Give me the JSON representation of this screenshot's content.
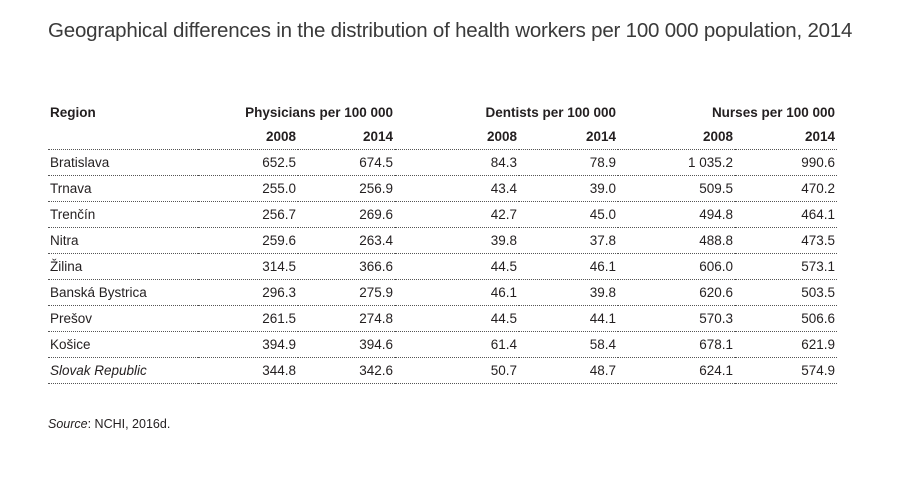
{
  "title": "Geographical differences in the distribution of health workers per 100 000 population, 2014",
  "table": {
    "region_header": "Region",
    "groups": [
      {
        "label": "Physicians per 100 000",
        "years": [
          "2008",
          "2014"
        ]
      },
      {
        "label": "Dentists per 100 000",
        "years": [
          "2008",
          "2014"
        ]
      },
      {
        "label": "Nurses per 100 000",
        "years": [
          "2008",
          "2014"
        ]
      }
    ],
    "rows": [
      {
        "region": "Bratislava",
        "values": [
          "652.5",
          "674.5",
          "84.3",
          "78.9",
          "1 035.2",
          "990.6"
        ]
      },
      {
        "region": "Trnava",
        "values": [
          "255.0",
          "256.9",
          "43.4",
          "39.0",
          "509.5",
          "470.2"
        ]
      },
      {
        "region": "Trenčín",
        "values": [
          "256.7",
          "269.6",
          "42.7",
          "45.0",
          "494.8",
          "464.1"
        ]
      },
      {
        "region": "Nitra",
        "values": [
          "259.6",
          "263.4",
          "39.8",
          "37.8",
          "488.8",
          "473.5"
        ]
      },
      {
        "region": "Žilina",
        "values": [
          "314.5",
          "366.6",
          "44.5",
          "46.1",
          "606.0",
          "573.1"
        ]
      },
      {
        "region": "Banská Bystrica",
        "values": [
          "296.3",
          "275.9",
          "46.1",
          "39.8",
          "620.6",
          "503.5"
        ]
      },
      {
        "region": "Prešov",
        "values": [
          "261.5",
          "274.8",
          "44.5",
          "44.1",
          "570.3",
          "506.6"
        ]
      },
      {
        "region": "Košice",
        "values": [
          "394.9",
          "394.6",
          "61.4",
          "58.4",
          "678.1",
          "621.9"
        ]
      },
      {
        "region": "Slovak Republic",
        "values": [
          "344.8",
          "342.6",
          "50.7",
          "48.7",
          "624.1",
          "574.9"
        ],
        "italic": true
      }
    ]
  },
  "source": {
    "label": "Source",
    "text": ": NCHI, 2016d."
  }
}
